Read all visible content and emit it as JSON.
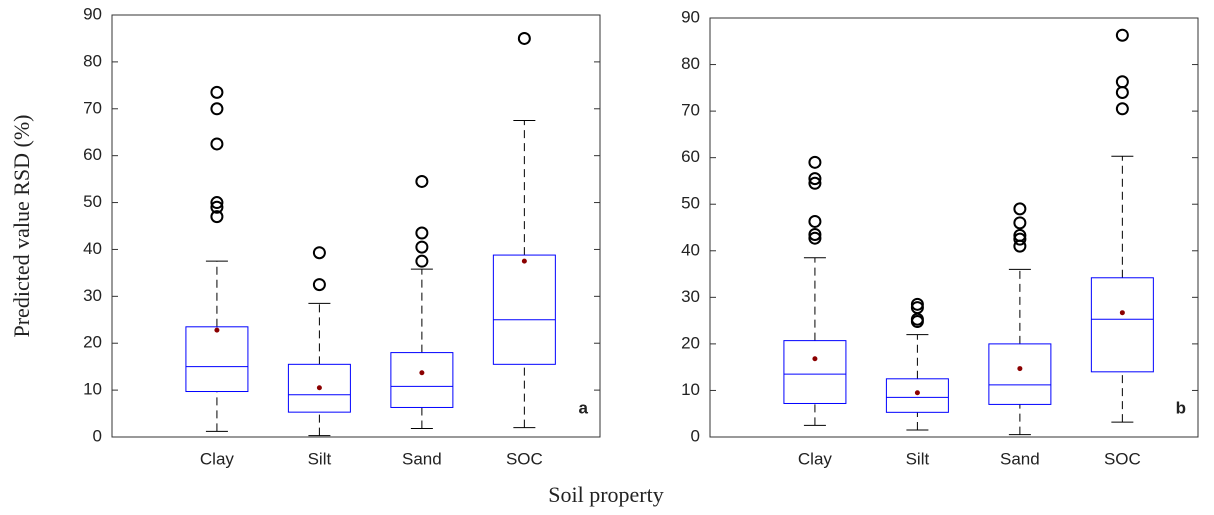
{
  "ylabel": "Predicted value RSD (%)",
  "xlabel": "Soil property",
  "chart_data": [
    {
      "type": "box",
      "panel_label": "a",
      "categories": [
        "Clay",
        "Silt",
        "Sand",
        "SOC"
      ],
      "boxes": [
        {
          "whislo": 1.2,
          "q1": 9.7,
          "med": 15,
          "q3": 23.5,
          "whishi": 37.5,
          "mean": 22.8,
          "fliers": [
            47,
            49,
            50,
            62.5,
            70,
            73.5
          ]
        },
        {
          "whislo": 0.3,
          "q1": 5.3,
          "med": 9,
          "q3": 15.5,
          "whishi": 28.5,
          "mean": 10.5,
          "fliers": [
            32.5,
            39.3
          ]
        },
        {
          "whislo": 1.8,
          "q1": 6.3,
          "med": 10.8,
          "q3": 18,
          "whishi": 35.8,
          "mean": 13.7,
          "fliers": [
            37.5,
            40.5,
            43.5,
            54.5
          ]
        },
        {
          "whislo": 2,
          "q1": 15.5,
          "med": 25,
          "q3": 38.8,
          "whishi": 67.5,
          "mean": 37.5,
          "fliers": [
            85
          ]
        }
      ],
      "ylim": [
        0,
        90
      ],
      "yticks": [
        0,
        10,
        20,
        30,
        40,
        50,
        60,
        70,
        80,
        90
      ],
      "box_color": "#0000ff",
      "whisker_color": "#000000",
      "mean_color": "#8b0000"
    },
    {
      "type": "box",
      "panel_label": "b",
      "categories": [
        "Clay",
        "Silt",
        "Sand",
        "SOC"
      ],
      "boxes": [
        {
          "whislo": 2.5,
          "q1": 7.2,
          "med": 13.5,
          "q3": 20.7,
          "whishi": 38.5,
          "mean": 16.8,
          "fliers": [
            42.7,
            43.5,
            46.3,
            54.5,
            55.5,
            59
          ]
        },
        {
          "whislo": 1.5,
          "q1": 5.3,
          "med": 8.5,
          "q3": 12.5,
          "whishi": 22,
          "mean": 9.5,
          "fliers": [
            24.8,
            25.3,
            27.8,
            28.5
          ]
        },
        {
          "whislo": 0.5,
          "q1": 7,
          "med": 11.2,
          "q3": 20,
          "whishi": 36,
          "mean": 14.7,
          "fliers": [
            41,
            42.5,
            43.3,
            46,
            49
          ]
        },
        {
          "whislo": 3.2,
          "q1": 14,
          "med": 25.3,
          "q3": 34.2,
          "whishi": 60.3,
          "mean": 26.7,
          "fliers": [
            70.5,
            74,
            76.3,
            86.3
          ]
        }
      ],
      "ylim": [
        0,
        90
      ],
      "yticks": [
        0,
        10,
        20,
        30,
        40,
        50,
        60,
        70,
        80,
        90
      ],
      "box_color": "#0000ff",
      "whisker_color": "#000000",
      "mean_color": "#8b0000"
    }
  ]
}
